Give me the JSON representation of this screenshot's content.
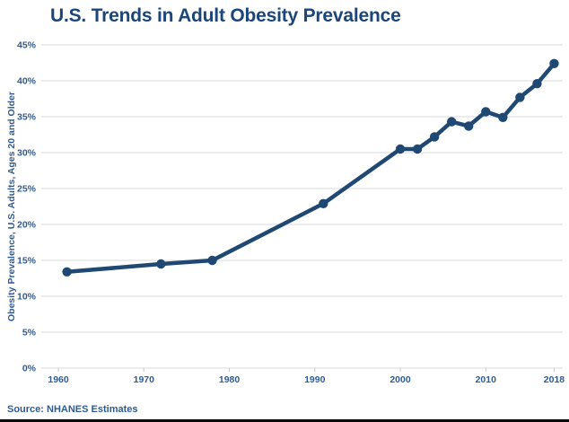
{
  "title": "U.S. Trends in Adult Obesity Prevalence",
  "source": "Source: NHANES Estimates",
  "colors": {
    "title": "#1b4679",
    "line": "#1f4873",
    "marker": "#1f4873",
    "axis_text": "#2e5b94",
    "gridline": "#d9d9d9",
    "tick_mark": "#c8c8c8",
    "background": "#ffffff",
    "bottom_border": "#0a0a0a"
  },
  "chart_data": {
    "type": "line",
    "title": "U.S. Trends in Adult Obesity Prevalence",
    "xlabel": "",
    "ylabel": "Obesity Prevalence, U.S. Adults, Ages 20 and Older",
    "series": [
      {
        "name": "Adult obesity prevalence (%)",
        "x": [
          1961,
          1972,
          1978,
          1991,
          2000,
          2002,
          2004,
          2006,
          2008,
          2010,
          2012,
          2014,
          2016,
          2018
        ],
        "values": [
          13.4,
          14.5,
          15.0,
          22.9,
          30.5,
          30.5,
          32.2,
          34.3,
          33.7,
          35.7,
          34.9,
          37.7,
          39.6,
          42.4
        ]
      }
    ],
    "xlim": [
      1958,
      2019
    ],
    "ylim": [
      0,
      45
    ],
    "yticks": [
      0,
      5,
      10,
      15,
      20,
      25,
      30,
      35,
      40,
      45
    ],
    "ytick_suffix": "%",
    "xticks": [
      1960,
      1970,
      1980,
      1990,
      2000,
      2010,
      2018
    ],
    "grid": "horizontal",
    "legend_position": "none",
    "marker": "circle",
    "source": "Source: NHANES Estimates"
  }
}
